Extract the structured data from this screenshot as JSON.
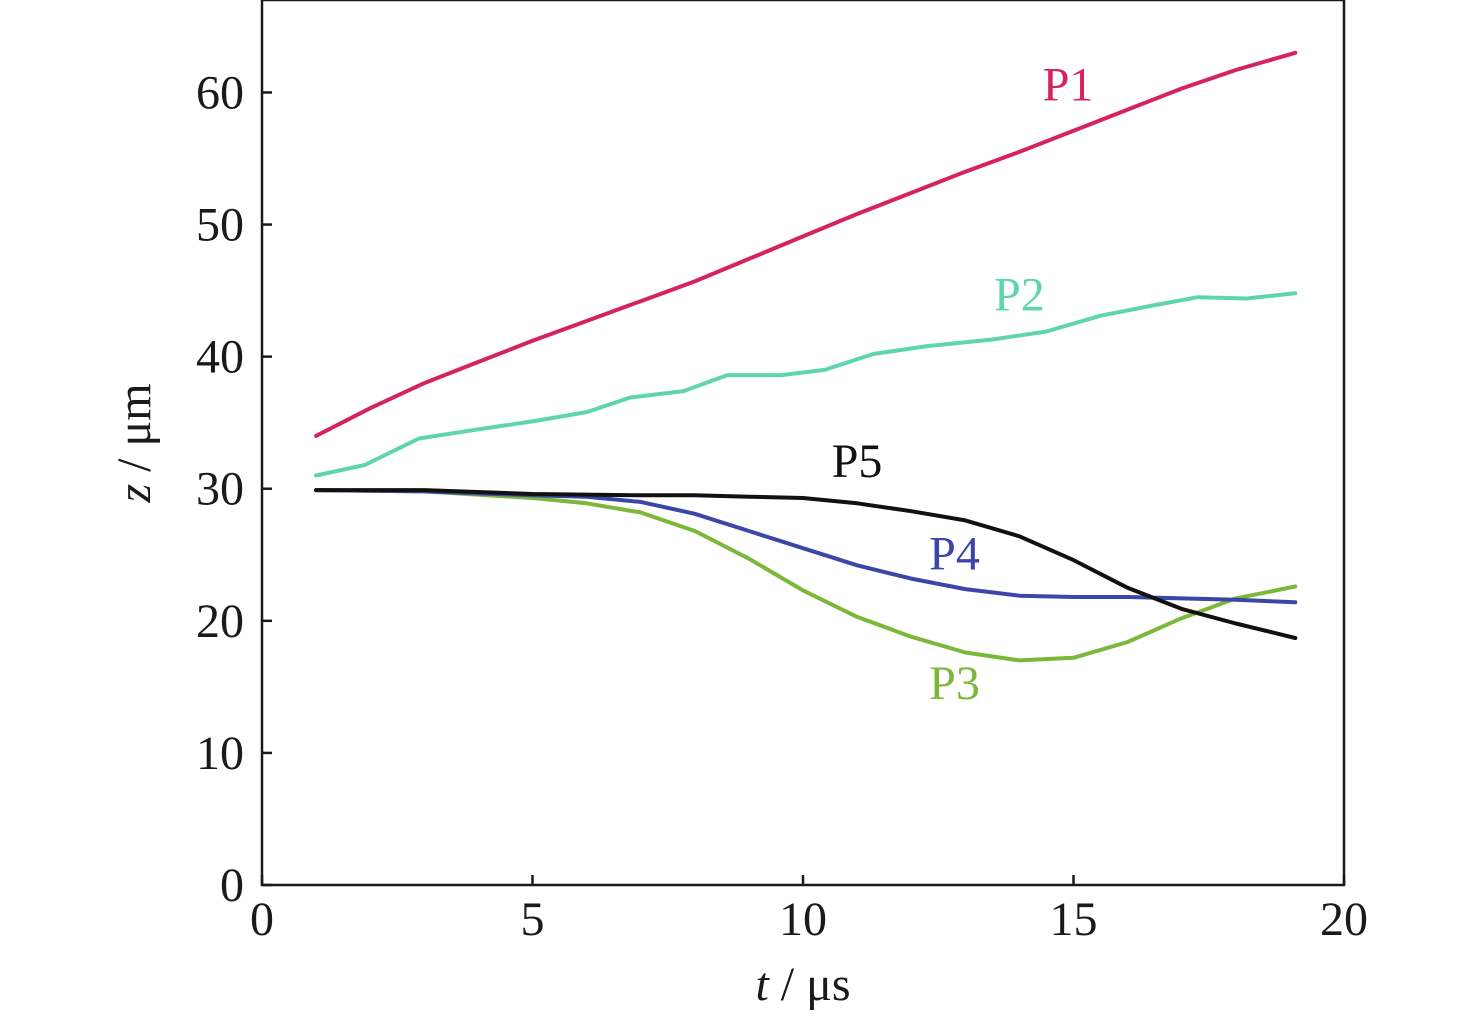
{
  "chart_data": {
    "type": "line",
    "xlabel": {
      "symbol": "t",
      "unit": " / μs"
    },
    "ylabel": {
      "symbol": "z",
      "unit": " / μm"
    },
    "xlim": [
      0,
      20
    ],
    "ylim": [
      0,
      67
    ],
    "x_ticks": [
      0,
      5,
      10,
      15,
      20
    ],
    "y_ticks": [
      0,
      10,
      20,
      30,
      40,
      50,
      60
    ],
    "grid": false,
    "legend": "inline labels",
    "series": [
      {
        "name": "P1",
        "color": "#d5245a",
        "x": [
          1,
          2,
          3,
          4,
          5,
          6,
          7,
          8,
          9,
          10,
          11,
          12,
          13,
          14,
          15,
          16,
          17,
          18,
          19.1
        ],
        "y": [
          34.0,
          36.1,
          38.0,
          39.6,
          41.2,
          42.7,
          44.2,
          45.7,
          47.4,
          49.1,
          50.8,
          52.4,
          54.0,
          55.5,
          57.1,
          58.7,
          60.3,
          61.7,
          63.0
        ]
      },
      {
        "name": "P2",
        "color": "#5fd4b0",
        "x": [
          1,
          1.9,
          2.9,
          4,
          5,
          6,
          6.8,
          7.8,
          8.6,
          9.6,
          10.4,
          11.3,
          12.3,
          13.5,
          14.5,
          15.5,
          16.5,
          17.3,
          18.2,
          19.1
        ],
        "y": [
          31.0,
          31.8,
          33.8,
          34.5,
          35.1,
          35.8,
          36.9,
          37.4,
          38.6,
          38.6,
          39.0,
          40.2,
          40.8,
          41.3,
          41.9,
          43.1,
          43.9,
          44.5,
          44.4,
          44.8
        ]
      },
      {
        "name": "P3",
        "color": "#7bb83a",
        "x": [
          1,
          3,
          5,
          6,
          7,
          8,
          9,
          10,
          11,
          12,
          13,
          14,
          15,
          16,
          17,
          18,
          19.1
        ],
        "y": [
          29.9,
          29.8,
          29.3,
          28.9,
          28.2,
          26.8,
          24.7,
          22.3,
          20.3,
          18.8,
          17.6,
          17.0,
          17.2,
          18.4,
          20.2,
          21.7,
          22.6
        ]
      },
      {
        "name": "P4",
        "color": "#3a46a8",
        "x": [
          1,
          3,
          5,
          6,
          7,
          8,
          9,
          10,
          11,
          12,
          13,
          14,
          15,
          16,
          17,
          18,
          19.1
        ],
        "y": [
          29.9,
          29.8,
          29.5,
          29.4,
          29.0,
          28.1,
          26.8,
          25.5,
          24.2,
          23.2,
          22.4,
          21.9,
          21.8,
          21.8,
          21.7,
          21.6,
          21.4
        ]
      },
      {
        "name": "P5",
        "color": "#111111",
        "x": [
          1,
          3,
          5,
          7,
          8,
          9,
          10,
          11,
          12,
          13,
          14,
          15,
          16,
          17,
          18,
          19.1
        ],
        "y": [
          29.9,
          29.9,
          29.6,
          29.5,
          29.5,
          29.4,
          29.3,
          28.9,
          28.3,
          27.6,
          26.4,
          24.6,
          22.5,
          20.9,
          19.8,
          18.7
        ]
      }
    ],
    "labels": [
      {
        "text": "P1",
        "color": "#d5245a",
        "x": 14.9,
        "y": 59.4
      },
      {
        "text": "P2",
        "color": "#5fd4b0",
        "x": 14.0,
        "y": 43.5
      },
      {
        "text": "P3",
        "color": "#7bb83a",
        "x": 12.8,
        "y": 14.1
      },
      {
        "text": "P4",
        "color": "#3a46a8",
        "x": 12.8,
        "y": 23.9
      },
      {
        "text": "P5",
        "color": "#111111",
        "x": 11.0,
        "y": 30.9
      }
    ]
  }
}
